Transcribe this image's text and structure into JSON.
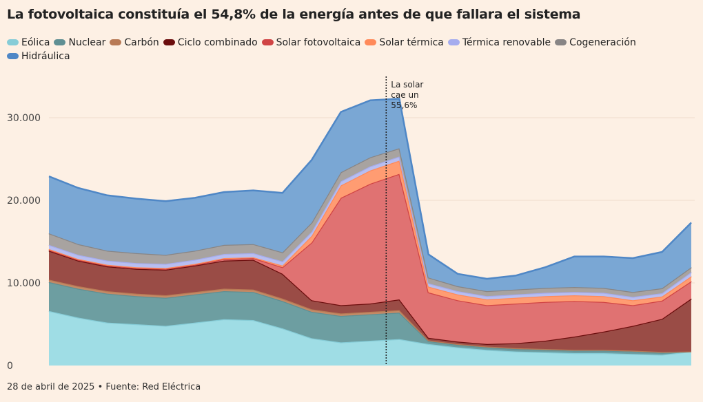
{
  "title": "La fotovoltaica constituía el 54,8% de la energía antes de que fallara el sistema",
  "footer": "28 de abril de 2025 • Fuente: Red Eléctrica",
  "chart_data": {
    "type": "area",
    "stacked": true,
    "title": "La fotovoltaica constituía el 54,8% de la energía antes de que fallara el sistema",
    "xlabel": "",
    "ylabel": "",
    "ylim": [
      0,
      35000
    ],
    "yticks": [
      {
        "value": 0,
        "label": "0"
      },
      {
        "value": 10000,
        "label": "10.000"
      },
      {
        "value": 20000,
        "label": "20.000"
      },
      {
        "value": 30000,
        "label": "30.000"
      }
    ],
    "x_count": 23,
    "event_index": 11.55,
    "annotation": {
      "lines": [
        "La solar",
        "cae un",
        "55,6%"
      ],
      "at_index": 11.55
    },
    "series": [
      {
        "name": "Eólica",
        "color": "#9fdde5",
        "stroke": "#86ccd7",
        "values": [
          6600,
          5800,
          5200,
          5000,
          4800,
          5200,
          5600,
          5500,
          4500,
          3300,
          2800,
          3000,
          3200,
          2600,
          2200,
          1900,
          1700,
          1600,
          1500,
          1500,
          1400,
          1300,
          1700
        ]
      },
      {
        "name": "Nuclear",
        "color": "#6d9ea1",
        "stroke": "#5f8f93",
        "values": [
          3500,
          3500,
          3500,
          3400,
          3400,
          3400,
          3400,
          3400,
          3300,
          3200,
          3200,
          3200,
          3200,
          350,
          300,
          300,
          300,
          300,
          300,
          300,
          300,
          250,
          0
        ]
      },
      {
        "name": "Carbón",
        "color": "#c48a66",
        "stroke": "#b87a55",
        "values": [
          300,
          300,
          300,
          300,
          300,
          300,
          300,
          300,
          300,
          300,
          300,
          300,
          300,
          100,
          100,
          100,
          100,
          100,
          100,
          100,
          100,
          100,
          0
        ]
      },
      {
        "name": "Ciclo combinado",
        "color": "#9a4c46",
        "stroke": "#6b0d0d",
        "values": [
          3500,
          3100,
          3000,
          3000,
          3100,
          3200,
          3400,
          3600,
          3000,
          1100,
          1000,
          1000,
          1300,
          300,
          300,
          300,
          600,
          1000,
          1600,
          2200,
          3000,
          4000,
          6400
        ]
      },
      {
        "name": "Solar fotovoltaica",
        "color": "#e07272",
        "stroke": "#d04444",
        "values": [
          100,
          100,
          100,
          100,
          100,
          100,
          200,
          200,
          800,
          7000,
          13000,
          14500,
          15200,
          5500,
          5000,
          4700,
          4800,
          4700,
          4300,
          3600,
          2500,
          2200,
          2100
        ]
      },
      {
        "name": "Solar térmica",
        "color": "#ff9c72",
        "stroke": "#ff8a5a",
        "values": [
          100,
          100,
          100,
          100,
          100,
          100,
          100,
          100,
          200,
          800,
          1500,
          1600,
          1600,
          700,
          700,
          700,
          700,
          700,
          700,
          700,
          600,
          500,
          600
        ]
      },
      {
        "name": "Térmica renovable",
        "color": "#b8bef0",
        "stroke": "#a5acee",
        "values": [
          500,
          500,
          500,
          500,
          500,
          500,
          500,
          500,
          500,
          500,
          500,
          500,
          500,
          400,
          400,
          400,
          400,
          400,
          400,
          400,
          400,
          400,
          500
        ]
      },
      {
        "name": "Cogeneración",
        "color": "#a8a3a0",
        "stroke": "#888585",
        "values": [
          1400,
          1300,
          1200,
          1200,
          1100,
          1100,
          1100,
          1100,
          1100,
          1100,
          1100,
          1100,
          1000,
          700,
          600,
          600,
          600,
          600,
          600,
          600,
          600,
          600,
          600
        ]
      },
      {
        "name": "Hidráulica",
        "color": "#7aa7d4",
        "stroke": "#4f87c6",
        "values": [
          6900,
          6800,
          6700,
          6600,
          6500,
          6400,
          6400,
          6500,
          7200,
          7600,
          7300,
          6900,
          6000,
          2800,
          1500,
          1500,
          1700,
          2500,
          3700,
          3800,
          4100,
          4400,
          5400
        ]
      }
    ]
  }
}
